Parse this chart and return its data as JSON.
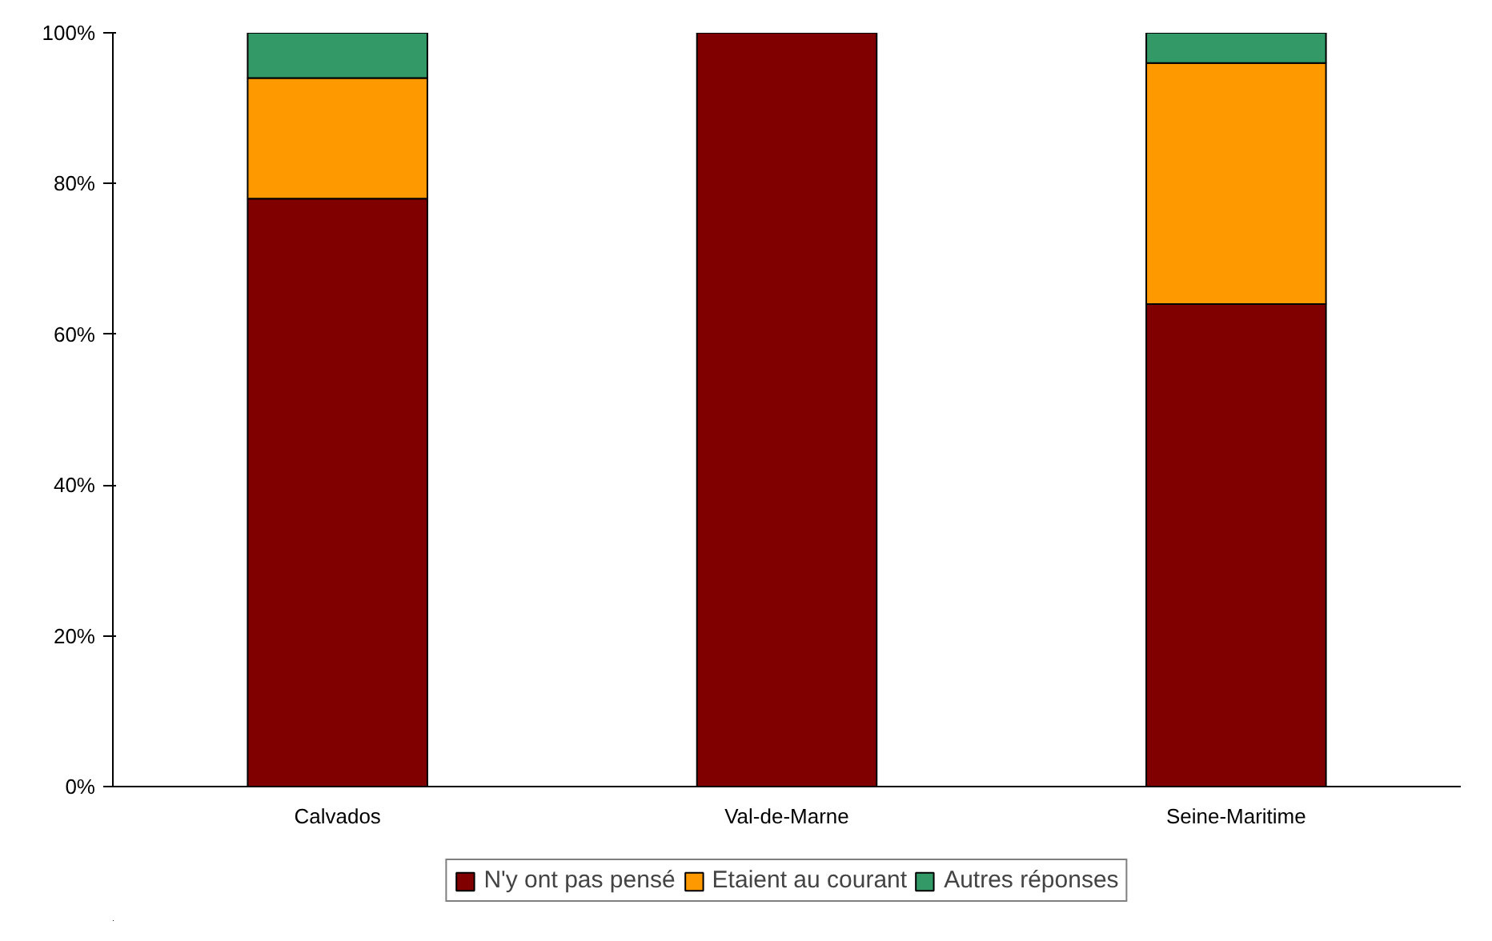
{
  "chart_data": {
    "type": "bar",
    "stacked": true,
    "categories": [
      "Calvados",
      "Val-de-Marne",
      "Seine-Maritime"
    ],
    "series": [
      {
        "name": "N'y ont pas pensé",
        "color": "#800000",
        "values": [
          78,
          100,
          64
        ]
      },
      {
        "name": "Etaient au courant",
        "color": "#ff9900",
        "values": [
          16,
          0,
          32
        ]
      },
      {
        "name": "Autres réponses",
        "color": "#339966",
        "values": [
          6,
          0,
          4
        ]
      }
    ],
    "ylim": [
      0,
      100
    ],
    "yticks": [
      {
        "value": 0,
        "label": "0%"
      },
      {
        "value": 20,
        "label": "20%"
      },
      {
        "value": 40,
        "label": "40%"
      },
      {
        "value": 60,
        "label": "60%"
      },
      {
        "value": 80,
        "label": "80%"
      },
      {
        "value": 100,
        "label": "100%"
      }
    ],
    "grid": false,
    "legend": "bottom"
  }
}
